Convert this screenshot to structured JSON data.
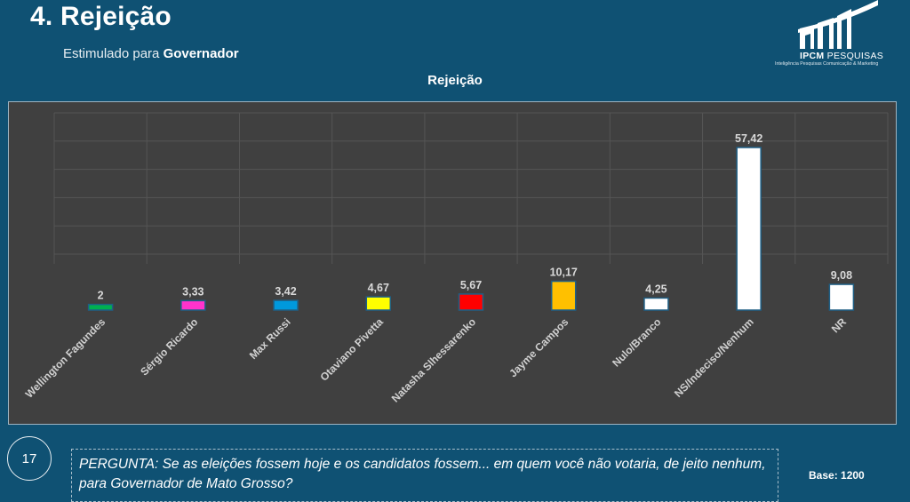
{
  "header": {
    "title": "4. Rejeição",
    "subtitle_prefix": "Estimulado para",
    "subtitle_bold": "Governador"
  },
  "logo": {
    "name_bold": "IPCM",
    "name_regular": "PESQUISAS",
    "tagline": "Inteligência Pesquisas Comunicação & Marketing"
  },
  "footer": {
    "slide_number": "17",
    "question": "PERGUNTA:  Se as eleições fossem hoje e os candidatos fossem... em quem você não votaria, de jeito nenhum, para Governador de Mato Grosso?",
    "base": "Base: 1200"
  },
  "chart_data": {
    "type": "bar",
    "title": "Rejeição",
    "xlabel": "",
    "ylabel": "",
    "ylim": [
      0,
      60
    ],
    "grid": true,
    "legend": "none",
    "categories": [
      "Wellington Fagundes",
      "Sérgio Ricardo",
      "Max Russi",
      "Otaviano Pivetta",
      "Natasha Slhessarenko",
      "Jayme Campos",
      "Nulo/Branco",
      "NS/Indeciso/Nenhum",
      "NR"
    ],
    "values": [
      2,
      3.33,
      3.42,
      4.67,
      5.67,
      10.17,
      4.25,
      57.42,
      9.08
    ],
    "value_labels": [
      "2",
      "3,33",
      "3,42",
      "4,67",
      "5,67",
      "10,17",
      "4,25",
      "57,42",
      "9,08"
    ],
    "colors": [
      "#00b050",
      "#ff33cc",
      "#0099dd",
      "#ffff00",
      "#ff0000",
      "#ffc000",
      "#ffffff",
      "#ffffff",
      "#ffffff"
    ]
  }
}
